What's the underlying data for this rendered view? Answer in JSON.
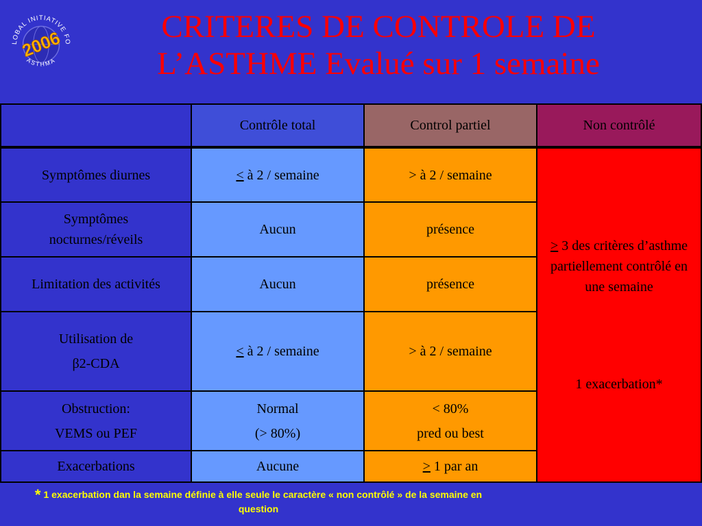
{
  "title": {
    "line1": "CRITERES DE CONTROLE DE",
    "line2": "L’ASTHME Evalué sur 1 semaine"
  },
  "logo": {
    "year": "2006",
    "arc_top": "GLOBAL INITIATIVE FOR",
    "arc_bottom": "ASTHMA"
  },
  "table": {
    "header": [
      "",
      "Contrôle total",
      "Control partiel",
      "Non contrôlé"
    ],
    "rows": [
      {
        "label": "Symptômes diurnes",
        "total": {
          "sym": "<",
          "text": " à 2 / semaine"
        },
        "partial": "> à 2 / semaine"
      },
      {
        "label_line1": "Symptômes",
        "label_line2": "nocturnes/réveils",
        "total": "Aucun",
        "partial": "présence"
      },
      {
        "label": "Limitation des activités",
        "total": "Aucun",
        "partial": "présence"
      },
      {
        "label_line1": "Utilisation de",
        "label_line2": "β2-CDA",
        "total": {
          "sym": "<",
          "text": " à 2 / semaine"
        },
        "partial": "> à 2 / semaine"
      },
      {
        "label_line1": "Obstruction:",
        "label_line2": "VEMS ou PEF",
        "total_line1": "Normal",
        "total_line2": "(> 80%)",
        "partial_line1": "< 80%",
        "partial_line2": "pred ou best"
      },
      {
        "label": "Exacerbations",
        "total": "Aucune",
        "partial": {
          "sym": ">",
          "text": " 1 par an"
        }
      }
    ],
    "non_controle": {
      "sym": ">",
      "text": " 3 des critères d’asthme partiellement contrôlé en une semaine",
      "exacerbation": "1 exacerbation*"
    }
  },
  "footnote": {
    "star": "*",
    "text": "1 exacerbation dan la semaine définie à elle seule le caractère « non contrôlé » de la semaine en question"
  },
  "colors": {
    "background": "#3333cc",
    "title": "#ff0000",
    "header_total": "#3f4ed8",
    "header_partial": "#996666",
    "header_non": "#99195b",
    "cell_total": "#6699ff",
    "cell_partial": "#ff9900",
    "cell_non": "#ff0000",
    "footnote": "#ffff00"
  }
}
